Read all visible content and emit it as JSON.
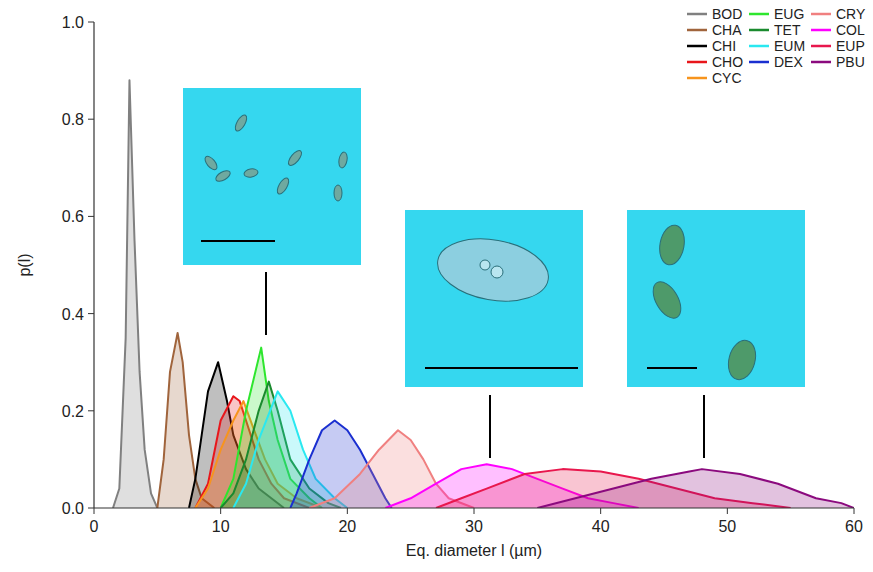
{
  "chart_data": {
    "type": "area",
    "x_label": "Eq. diameter l (µm)",
    "y_label": "p(l)",
    "xlim": [
      0,
      60
    ],
    "xticks": [
      0,
      10,
      20,
      30,
      40,
      50,
      60
    ],
    "ylim": [
      0,
      1.0
    ],
    "yticks": [
      {
        "value": 0,
        "label": "0.0"
      },
      0.2,
      0.4,
      0.6,
      0.8,
      {
        "value": 1.0,
        "label": "1.0"
      }
    ],
    "legend": "top-right",
    "series": [
      {
        "name": "BOD",
        "color": "#808080",
        "x": [
          1.5,
          2,
          2.5,
          2.8,
          3.2,
          3.6,
          4,
          4.5,
          5
        ],
        "values": [
          0,
          0.04,
          0.35,
          0.88,
          0.55,
          0.28,
          0.12,
          0.03,
          0
        ]
      },
      {
        "name": "CHA",
        "color": "#a0643c",
        "x": [
          5,
          5.5,
          6,
          6.6,
          7,
          7.5,
          8,
          8.5,
          9.5
        ],
        "values": [
          0,
          0.1,
          0.28,
          0.36,
          0.3,
          0.15,
          0.06,
          0.02,
          0
        ]
      },
      {
        "name": "CHI",
        "color": "#000000",
        "x": [
          7.5,
          8,
          8.5,
          9,
          9.8,
          10.5,
          11,
          12,
          13,
          14,
          15
        ],
        "values": [
          0,
          0.06,
          0.15,
          0.24,
          0.3,
          0.22,
          0.15,
          0.08,
          0.04,
          0.02,
          0
        ]
      },
      {
        "name": "CHO",
        "color": "#e8161b",
        "x": [
          8,
          9,
          10,
          11,
          11.5,
          12,
          13,
          14,
          15,
          17
        ],
        "values": [
          0,
          0.05,
          0.18,
          0.23,
          0.22,
          0.18,
          0.1,
          0.05,
          0.02,
          0
        ]
      },
      {
        "name": "CYC",
        "color": "#f7941d",
        "x": [
          8,
          9,
          10,
          11,
          11.8,
          12.5,
          13.5,
          14.5,
          16,
          18
        ],
        "values": [
          0,
          0.04,
          0.12,
          0.18,
          0.22,
          0.17,
          0.1,
          0.05,
          0.02,
          0
        ]
      },
      {
        "name": "EUG",
        "color": "#2ee62e",
        "x": [
          10,
          11,
          12,
          13.2,
          13.8,
          14.5,
          15.5,
          17,
          18
        ],
        "values": [
          0,
          0.06,
          0.2,
          0.33,
          0.22,
          0.14,
          0.06,
          0.02,
          0
        ]
      },
      {
        "name": "TET",
        "color": "#1a8a2e",
        "x": [
          10,
          11,
          12,
          13,
          13.8,
          14.5,
          15.5,
          17,
          18.5,
          19.5
        ],
        "values": [
          0,
          0.03,
          0.1,
          0.2,
          0.26,
          0.2,
          0.1,
          0.04,
          0.01,
          0
        ]
      },
      {
        "name": "EUM",
        "color": "#2ae8f0",
        "x": [
          11,
          12,
          13,
          14.5,
          15.5,
          16.5,
          17.5,
          19,
          20
        ],
        "values": [
          0,
          0.05,
          0.14,
          0.24,
          0.2,
          0.12,
          0.06,
          0.02,
          0
        ]
      },
      {
        "name": "DEX",
        "color": "#1a2fd0",
        "x": [
          15.5,
          16,
          17,
          18,
          19,
          20,
          21,
          22,
          23,
          23.5
        ],
        "values": [
          0,
          0.03,
          0.1,
          0.16,
          0.18,
          0.16,
          0.12,
          0.07,
          0.02,
          0
        ]
      },
      {
        "name": "CRY",
        "color": "#f08080",
        "x": [
          17,
          19,
          21,
          22.5,
          24,
          25,
          26,
          27,
          28,
          30
        ],
        "values": [
          0,
          0.02,
          0.07,
          0.12,
          0.16,
          0.14,
          0.1,
          0.05,
          0.02,
          0
        ]
      },
      {
        "name": "COL",
        "color": "#ff00ff",
        "x": [
          23,
          25,
          27,
          29,
          31,
          33,
          35,
          37,
          39,
          41,
          43
        ],
        "values": [
          0,
          0.02,
          0.05,
          0.08,
          0.09,
          0.08,
          0.06,
          0.04,
          0.02,
          0.01,
          0
        ]
      },
      {
        "name": "EUP",
        "color": "#e8174d",
        "x": [
          27,
          29,
          31,
          34,
          37,
          40,
          43,
          46,
          49,
          52,
          55
        ],
        "values": [
          0,
          0.02,
          0.04,
          0.07,
          0.08,
          0.075,
          0.06,
          0.04,
          0.02,
          0.01,
          0
        ]
      },
      {
        "name": "PBU",
        "color": "#8b0a7e",
        "x": [
          35,
          38,
          41,
          44,
          47,
          48,
          51,
          54,
          57,
          59,
          60
        ],
        "values": [
          0,
          0.02,
          0.04,
          0.06,
          0.075,
          0.08,
          0.07,
          0.05,
          0.02,
          0.01,
          0
        ]
      }
    ]
  }
}
